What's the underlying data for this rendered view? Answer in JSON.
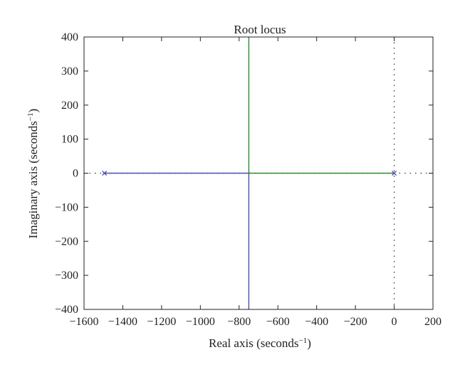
{
  "chart_data": {
    "type": "line",
    "title": "Root locus",
    "xlabel": "Real axis (seconds",
    "ylabel": "Imaginary axis (seconds",
    "label_exponent": "−1",
    "xlim": [
      -1600,
      200
    ],
    "ylim": [
      -400,
      400
    ],
    "xticks": [
      -1600,
      -1400,
      -1200,
      -1000,
      -800,
      -600,
      -400,
      -200,
      0,
      200
    ],
    "yticks": [
      -400,
      -300,
      -200,
      -100,
      0,
      100,
      200,
      300,
      400
    ],
    "xtick_labels": [
      "−1600",
      "−1400",
      "−1200",
      "−1000",
      "−800",
      "−600",
      "−400",
      "−200",
      "0",
      "200"
    ],
    "ytick_labels": [
      "−400",
      "−300",
      "−200",
      "−100",
      "0",
      "100",
      "200",
      "300",
      "400"
    ],
    "grid": false,
    "series": [
      {
        "color": "#4b4fb3",
        "segments": [
          {
            "x": [
              -1495,
              -750
            ],
            "y": [
              0,
              0
            ]
          },
          {
            "x": [
              -750,
              -750
            ],
            "y": [
              0,
              -400
            ]
          }
        ]
      },
      {
        "color": "#2e8b2e",
        "segments": [
          {
            "x": [
              0,
              -745
            ],
            "y": [
              0,
              0
            ]
          },
          {
            "x": [
              -745,
              -750,
              -750
            ],
            "y": [
              0,
              3,
              400
            ]
          }
        ]
      }
    ],
    "poles": [
      {
        "x": -1495,
        "y": 0,
        "color": "#4b4fb3"
      },
      {
        "x": 0,
        "y": 0,
        "color": "#4b4fb3"
      }
    ],
    "reference_lines": [
      {
        "orientation": "vertical",
        "value": 0,
        "style": "dotted",
        "color": "#333333"
      },
      {
        "orientation": "horizontal",
        "value": 0,
        "style": "dotted",
        "color": "#333333"
      }
    ]
  }
}
